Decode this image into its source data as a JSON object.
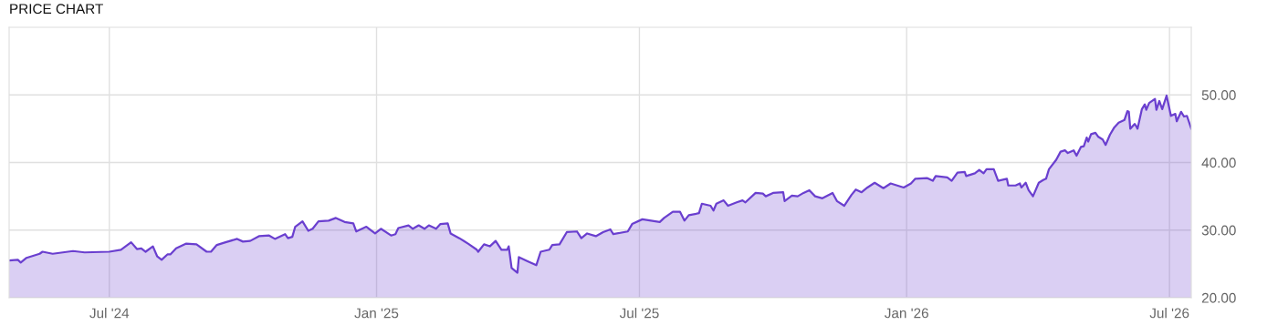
{
  "chart_data": {
    "type": "area",
    "title": "PRICE CHART",
    "xlim": [
      "2024-04-23",
      "2026-07-16"
    ],
    "ylim": [
      20,
      60
    ],
    "xticks": [
      {
        "value": "2024-07-01",
        "label": "Jul '24"
      },
      {
        "value": "2025-01-01",
        "label": "Jan '25"
      },
      {
        "value": "2025-07-01",
        "label": "Jul '25"
      },
      {
        "value": "2026-01-01",
        "label": "Jan '26"
      },
      {
        "value": "2026-07-01",
        "label": "Jul '26"
      }
    ],
    "yticks": [
      {
        "value": 20,
        "label": "20.00"
      },
      {
        "value": 30,
        "label": "30.00"
      },
      {
        "value": 40,
        "label": "40.00"
      },
      {
        "value": 50,
        "label": "50.00"
      }
    ],
    "grid": true,
    "series": [
      {
        "color": "#6a3fcf",
        "x": [
          "2024-04-23",
          "2024-04-29",
          "2024-05-01",
          "2024-05-05",
          "2024-05-14",
          "2024-05-16",
          "2024-05-23",
          "2024-06-06",
          "2024-06-14",
          "2024-07-01",
          "2024-07-09",
          "2024-07-16",
          "2024-07-20",
          "2024-07-23",
          "2024-07-26",
          "2024-07-31",
          "2024-08-03",
          "2024-08-06",
          "2024-08-10",
          "2024-08-12",
          "2024-08-16",
          "2024-08-23",
          "2024-08-30",
          "2024-09-06",
          "2024-09-09",
          "2024-09-13",
          "2024-09-19",
          "2024-09-27",
          "2024-10-01",
          "2024-10-06",
          "2024-10-12",
          "2024-10-19",
          "2024-10-23",
          "2024-10-30",
          "2024-11-01",
          "2024-11-04",
          "2024-11-06",
          "2024-11-11",
          "2024-11-15",
          "2024-11-18",
          "2024-11-22",
          "2024-11-29",
          "2024-12-04",
          "2024-12-10",
          "2024-12-16",
          "2024-12-18",
          "2024-12-25",
          "2024-12-31",
          "2025-01-04",
          "2025-01-11",
          "2025-01-14",
          "2025-01-16",
          "2025-01-23",
          "2025-01-26",
          "2025-01-30",
          "2025-02-03",
          "2025-02-06",
          "2025-02-11",
          "2025-02-14",
          "2025-02-19",
          "2025-02-21",
          "2025-02-27",
          "2025-03-05",
          "2025-03-11",
          "2025-03-12",
          "2025-03-16",
          "2025-03-20",
          "2025-03-24",
          "2025-03-28",
          "2025-04-01",
          "2025-04-02",
          "2025-04-04",
          "2025-04-08",
          "2025-04-09",
          "2025-04-13",
          "2025-04-15",
          "2025-04-21",
          "2025-04-24",
          "2025-04-30",
          "2025-05-02",
          "2025-05-07",
          "2025-05-12",
          "2025-05-19",
          "2025-05-22",
          "2025-05-26",
          "2025-06-01",
          "2025-06-06",
          "2025-06-11",
          "2025-06-13",
          "2025-06-23",
          "2025-06-26",
          "2025-07-03",
          "2025-07-09",
          "2025-07-15",
          "2025-07-18",
          "2025-07-24",
          "2025-07-29",
          "2025-08-01",
          "2025-08-04",
          "2025-08-11",
          "2025-08-13",
          "2025-08-19",
          "2025-08-21",
          "2025-08-23",
          "2025-08-28",
          "2025-08-31",
          "2025-09-06",
          "2025-09-10",
          "2025-09-12",
          "2025-09-19",
          "2025-09-24",
          "2025-09-26",
          "2025-10-01",
          "2025-10-08",
          "2025-10-09",
          "2025-10-14",
          "2025-10-18",
          "2025-10-22",
          "2025-10-26",
          "2025-10-30",
          "2025-11-04",
          "2025-11-11",
          "2025-11-14",
          "2025-11-19",
          "2025-11-24",
          "2025-11-27",
          "2025-12-01",
          "2025-12-05",
          "2025-12-10",
          "2025-12-13",
          "2025-12-16",
          "2025-12-21",
          "2025-12-30",
          "2026-01-04",
          "2026-01-07",
          "2026-01-15",
          "2026-01-19",
          "2026-01-21",
          "2026-01-29",
          "2026-02-01",
          "2026-02-05",
          "2026-02-10",
          "2026-02-11",
          "2026-02-17",
          "2026-02-20",
          "2026-02-23",
          "2026-02-25",
          "2026-03-02",
          "2026-03-05",
          "2026-03-11",
          "2026-03-12",
          "2026-03-17",
          "2026-03-20",
          "2026-03-21",
          "2026-03-24",
          "2026-03-26",
          "2026-03-29",
          "2026-04-02",
          "2026-04-05",
          "2026-04-07",
          "2026-04-09",
          "2026-04-14",
          "2026-04-17",
          "2026-04-20",
          "2026-04-22",
          "2026-04-26",
          "2026-04-28",
          "2026-05-01",
          "2026-05-03",
          "2026-05-05",
          "2026-05-06",
          "2026-05-08",
          "2026-05-11",
          "2026-05-13",
          "2026-05-16",
          "2026-05-18",
          "2026-05-21",
          "2026-05-24",
          "2026-05-27",
          "2026-05-31",
          "2026-06-02",
          "2026-06-03",
          "2026-06-04",
          "2026-06-07",
          "2026-06-08",
          "2026-06-09",
          "2026-06-12",
          "2026-06-14",
          "2026-06-15",
          "2026-06-17",
          "2026-06-21",
          "2026-06-22",
          "2026-06-24",
          "2026-06-26",
          "2026-06-29",
          "2026-07-02",
          "2026-07-05",
          "2026-07-06",
          "2026-07-09",
          "2026-07-11",
          "2026-07-13",
          "2026-07-16"
        ],
        "values": [
          25.5,
          25.6,
          25.2,
          25.9,
          26.5,
          26.8,
          26.5,
          26.9,
          26.7,
          26.8,
          27.1,
          28.2,
          27.2,
          27.3,
          26.8,
          27.6,
          26.1,
          25.6,
          26.4,
          26.4,
          27.3,
          28.0,
          27.9,
          26.8,
          26.8,
          27.8,
          28.2,
          28.7,
          28.3,
          28.4,
          29.1,
          29.2,
          28.7,
          29.4,
          28.8,
          29.0,
          30.5,
          31.3,
          29.9,
          30.2,
          31.3,
          31.4,
          31.8,
          31.2,
          31.0,
          29.8,
          30.5,
          29.5,
          30.2,
          29.2,
          29.4,
          30.3,
          30.7,
          30.2,
          30.7,
          30.2,
          30.7,
          30.2,
          30.9,
          31.0,
          29.5,
          28.8,
          28.0,
          27.1,
          26.8,
          27.9,
          27.6,
          28.4,
          27.1,
          27.1,
          27.6,
          24.4,
          23.7,
          26.0,
          25.6,
          25.4,
          24.8,
          26.8,
          27.1,
          27.8,
          27.9,
          29.7,
          29.8,
          28.8,
          29.5,
          29.1,
          29.7,
          30.1,
          29.4,
          29.8,
          30.9,
          31.6,
          31.4,
          31.2,
          31.8,
          32.7,
          32.7,
          31.4,
          32.2,
          32.5,
          33.9,
          33.6,
          32.9,
          33.9,
          34.4,
          33.6,
          34.1,
          34.4,
          34.1,
          35.5,
          35.4,
          35.0,
          35.5,
          35.6,
          34.3,
          35.1,
          35.0,
          35.5,
          35.9,
          35.0,
          34.7,
          35.5,
          34.3,
          33.6,
          35.2,
          36.0,
          35.6,
          36.3,
          37.0,
          36.6,
          36.2,
          36.9,
          36.3,
          36.9,
          37.6,
          37.7,
          37.3,
          38.0,
          37.8,
          37.3,
          38.5,
          38.6,
          38.0,
          38.4,
          38.9,
          38.4,
          39.0,
          39.0,
          37.3,
          37.6,
          36.6,
          36.6,
          36.9,
          36.3,
          37.0,
          35.9,
          35.0,
          37.0,
          37.4,
          37.6,
          39.0,
          40.4,
          41.6,
          41.8,
          41.4,
          41.8,
          41.0,
          42.3,
          42.4,
          43.7,
          43.1,
          44.2,
          44.4,
          43.8,
          43.4,
          42.6,
          44.1,
          45.2,
          45.9,
          46.3,
          47.6,
          47.5,
          45.0,
          45.7,
          45.4,
          45.0,
          47.9,
          48.6,
          47.8,
          48.8,
          49.4,
          47.8,
          49.1,
          47.9,
          49.9,
          46.9,
          47.2,
          46.1,
          47.5,
          46.8,
          46.9,
          45.0
        ]
      }
    ]
  }
}
